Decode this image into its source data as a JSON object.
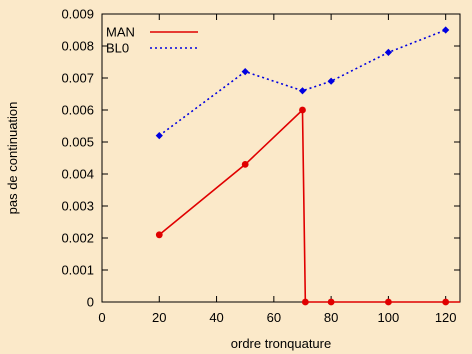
{
  "chart_data": {
    "type": "line",
    "xlabel": "ordre tronquature",
    "ylabel": "pas de continuation",
    "xlim": [
      0,
      125
    ],
    "ylim": [
      0,
      0.009
    ],
    "x_ticks": [
      "0",
      "20",
      "40",
      "60",
      "80",
      "100",
      "120"
    ],
    "y_ticks": [
      "0",
      "0.001",
      "0.002",
      "0.003",
      "0.004",
      "0.005",
      "0.006",
      "0.007",
      "0.008",
      "0.009"
    ],
    "x_tick_values": [
      0,
      20,
      40,
      60,
      80,
      100,
      120
    ],
    "y_tick_values": [
      0,
      0.001,
      0.002,
      0.003,
      0.004,
      0.005,
      0.006,
      0.007,
      0.008,
      0.009
    ],
    "grid": false,
    "legend_position": "top-left",
    "series": [
      {
        "name": "MAN",
        "color": "#e00000",
        "line_style": "solid",
        "marker": "circle",
        "points": [
          [
            20,
            0.0021
          ],
          [
            50,
            0.0043
          ],
          [
            70,
            0.006
          ],
          [
            71,
            0
          ],
          [
            80,
            0
          ],
          [
            100,
            0
          ],
          [
            120,
            0
          ],
          [
            125,
            0
          ]
        ],
        "marker_x": [
          20,
          50,
          70,
          71,
          80,
          100,
          120
        ]
      },
      {
        "name": "BL0",
        "color": "#0000e0",
        "line_style": "dotted",
        "marker": "diamond",
        "points": [
          [
            20,
            0.0052
          ],
          [
            50,
            0.0072
          ],
          [
            70,
            0.0066
          ],
          [
            80,
            0.0069
          ],
          [
            100,
            0.0078
          ],
          [
            120,
            0.0085
          ]
        ],
        "marker_x": [
          20,
          50,
          70,
          80,
          100,
          120
        ]
      }
    ]
  }
}
